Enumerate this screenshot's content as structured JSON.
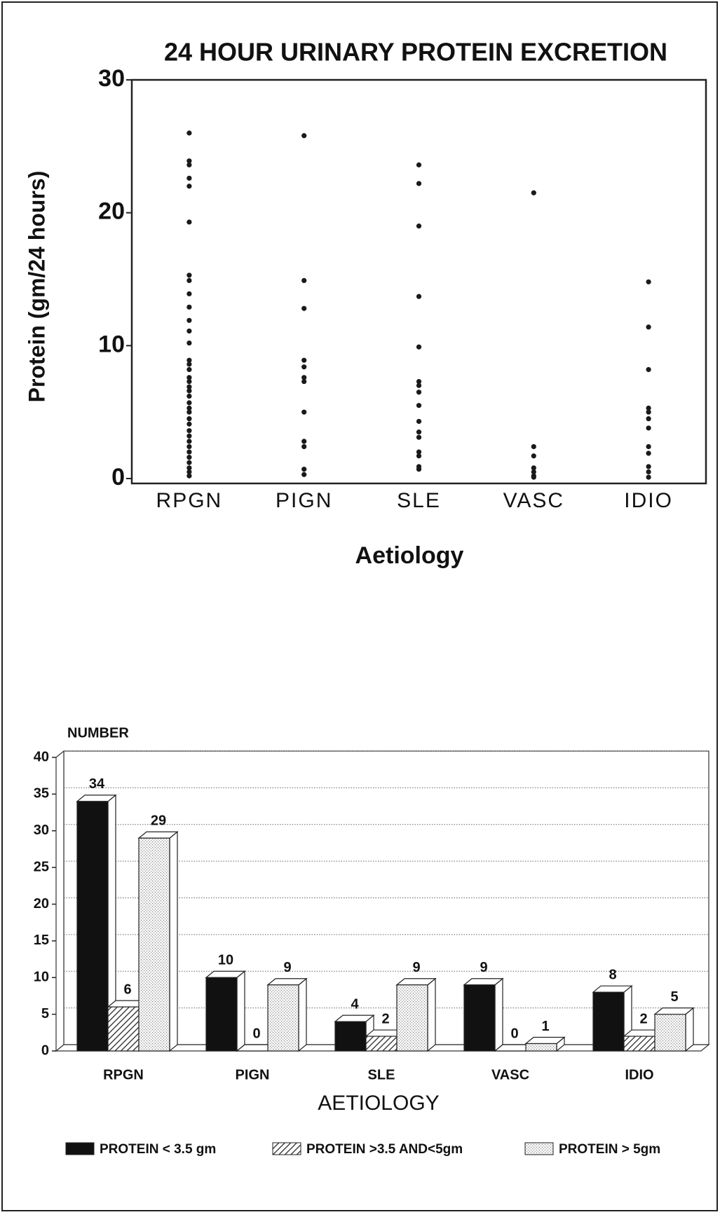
{
  "chart_data": [
    {
      "type": "scatter",
      "title": "24 HOUR URINARY PROTEIN EXCRETION",
      "y_label": "Protein (gm/24 hours)",
      "x_label": "Aetiology",
      "categories": [
        "RPGN",
        "PIGN",
        "SLE",
        "VASC",
        "IDIO"
      ],
      "values": [
        [
          26.0,
          23.9,
          23.6,
          22.6,
          22.0,
          19.3,
          15.3,
          14.9,
          13.9,
          12.9,
          11.9,
          11.1,
          10.2,
          8.9,
          8.6,
          8.2,
          7.6,
          7.3,
          6.9,
          6.6,
          6.2,
          5.7,
          5.3,
          5.0,
          4.5,
          4.1,
          3.6,
          3.2,
          2.8,
          2.4,
          2.0,
          1.6,
          1.2,
          0.8,
          0.5,
          0.2
        ],
        [
          25.8,
          14.9,
          12.8,
          8.9,
          8.4,
          7.6,
          7.3,
          5.0,
          2.8,
          2.4,
          0.7,
          0.3
        ],
        [
          23.6,
          22.2,
          19.0,
          13.7,
          9.9,
          7.3,
          7.0,
          6.5,
          5.5,
          4.3,
          3.5,
          3.1,
          2.0,
          1.7,
          0.9,
          0.7
        ],
        [
          21.5,
          2.4,
          1.7,
          0.8,
          0.5,
          0.2,
          0.1
        ],
        [
          14.8,
          11.4,
          8.2,
          5.3,
          5.0,
          4.5,
          3.8,
          2.4,
          1.9,
          0.9,
          0.5,
          0.1
        ]
      ],
      "color": "#1a1a1a",
      "ylim": [
        0,
        30
      ],
      "yticks": [
        0,
        10,
        20,
        30
      ]
    },
    {
      "type": "bar3d",
      "y_label": "NUMBER",
      "x_label": "AETIOLOGY",
      "categories": [
        "RPGN",
        "PIGN",
        "SLE",
        "VASC",
        "IDIO"
      ],
      "series": [
        {
          "name": "PROTEIN < 3.5 gm",
          "color": "#111111",
          "pattern": "solid",
          "values": [
            34,
            10,
            4,
            9,
            8
          ]
        },
        {
          "name": "PROTEIN >3.5 AND<5gm",
          "color": "#555555",
          "pattern": "hatch",
          "values": [
            6,
            0,
            2,
            0,
            2
          ]
        },
        {
          "name": "PROTEIN > 5gm",
          "color": "#cccccc",
          "pattern": "dots",
          "values": [
            29,
            9,
            9,
            1,
            5
          ]
        }
      ],
      "ylim": [
        0,
        40
      ],
      "yticks": [
        0,
        5,
        10,
        15,
        20,
        25,
        30,
        35,
        40
      ],
      "grid": true
    }
  ]
}
